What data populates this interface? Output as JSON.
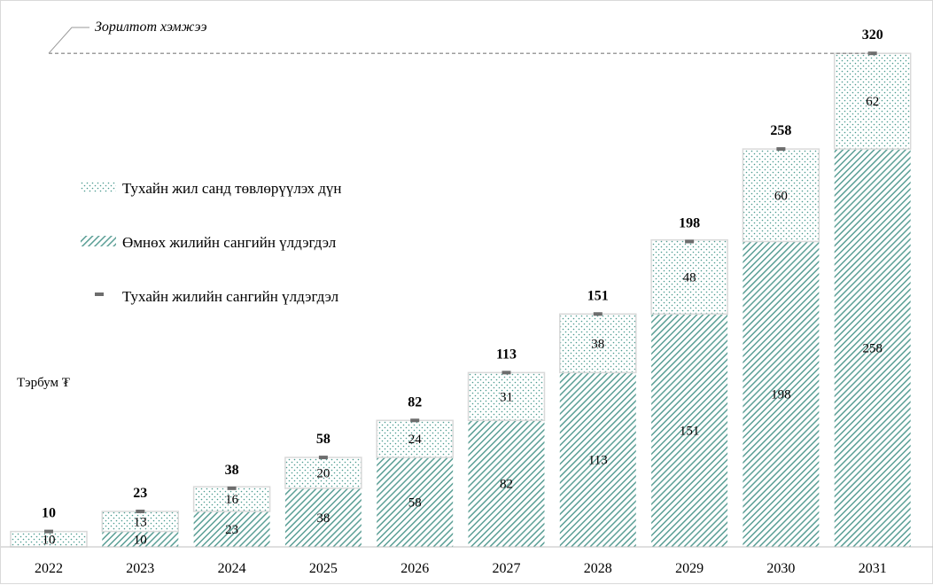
{
  "chart_data": {
    "type": "bar",
    "stacked": true,
    "categories": [
      "2022",
      "2023",
      "2024",
      "2025",
      "2026",
      "2027",
      "2028",
      "2029",
      "2030",
      "2031"
    ],
    "series": [
      {
        "name": "Өмнөх жилийн сангийн үлдэгдэл",
        "values": [
          0,
          10,
          23,
          38,
          58,
          82,
          113,
          151,
          198,
          258
        ],
        "pattern": "hatched",
        "color": "#5b9f96"
      },
      {
        "name": "Тухайн жил санд төвлөрүүлэх дүн",
        "values": [
          10,
          13,
          16,
          20,
          24,
          31,
          38,
          48,
          60,
          62
        ],
        "pattern": "dotted",
        "color": "#4a9a8e"
      }
    ],
    "totals": {
      "name": "Тухайн жилийн сангийн үлдэгдэл",
      "values": [
        10,
        23,
        38,
        58,
        82,
        113,
        151,
        198,
        258,
        320
      ],
      "marker_color": "#6d6d6d"
    },
    "target": {
      "label": "Зорилтот хэмжээ",
      "value": 320
    },
    "unit_label": "Тэрбум ₮",
    "ylim": [
      0,
      350
    ],
    "grid": false,
    "legend_position": "left-middle"
  }
}
